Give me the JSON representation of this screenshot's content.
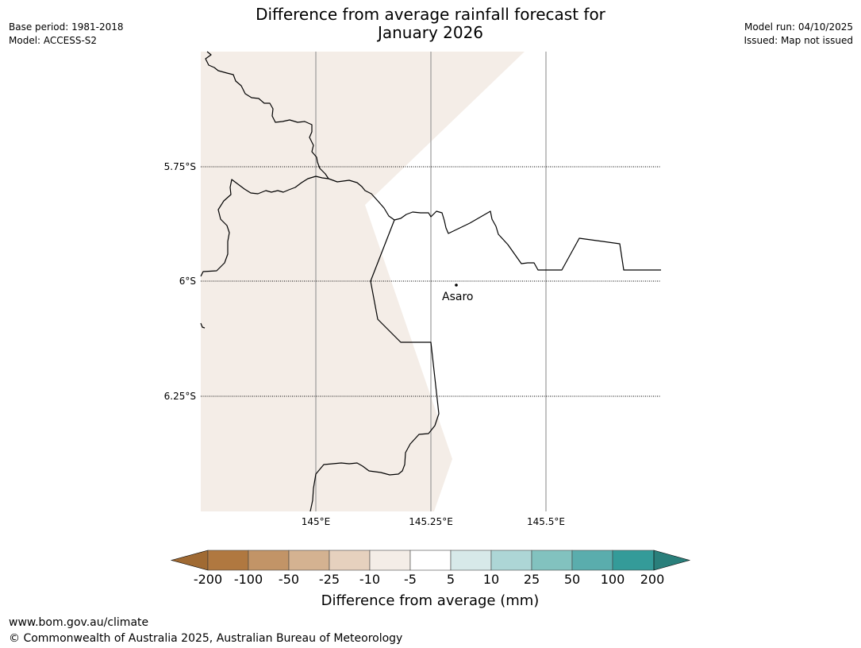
{
  "header": {
    "base_period": "Base period: 1981-2018",
    "model": "Model: ACCESS-S2",
    "model_run": "Model run: 04/10/2025",
    "issued": "Issued: Map not issued",
    "title_line1": "Difference from average rainfall forecast for",
    "title_line2": "January 2026"
  },
  "map": {
    "lat_labels": [
      "5.75°S",
      "6°S",
      "6.25°S"
    ],
    "lon_labels": [
      "145°E",
      "145.25°E",
      "145.5°E"
    ],
    "place": "Asaro",
    "fill_color": "#f4ede7",
    "boundary_color": "#000000"
  },
  "legend": {
    "title": "Difference from average (mm)",
    "ticks": [
      "-200",
      "-100",
      "-50",
      "-25",
      "-10",
      "-5",
      "5",
      "10",
      "25",
      "50",
      "100",
      "200"
    ],
    "colors": [
      "#a06a33",
      "#b07840",
      "#c29467",
      "#d4b291",
      "#e6d1be",
      "#f4ede7",
      "#ffffff",
      "#d7e9e9",
      "#add6d6",
      "#82c2bf",
      "#5aadad",
      "#349b99",
      "#2a7f7b"
    ]
  },
  "footer": {
    "url": "www.bom.gov.au/climate",
    "copyright": "© Commonwealth of Australia 2025, Australian Bureau of Meteorology"
  }
}
